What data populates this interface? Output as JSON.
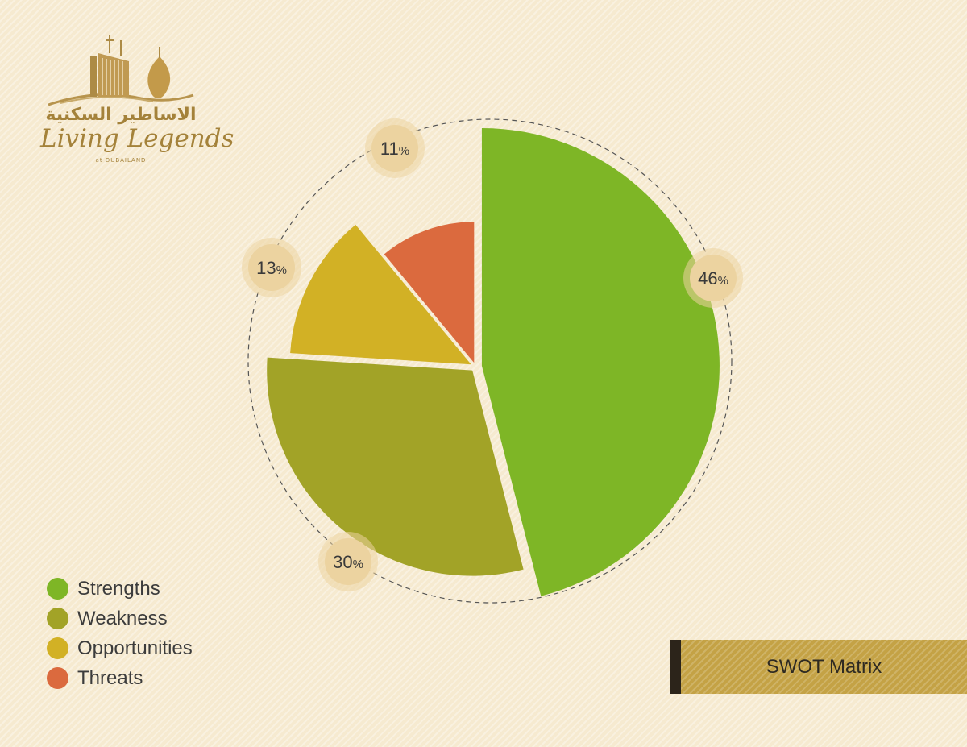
{
  "brand": {
    "arabic_name": "الاساطير السكنية",
    "name": "Living Legends",
    "tagline": "at DUBAILAND"
  },
  "badge": {
    "label": "SWOT Matrix"
  },
  "colors": {
    "strengths": "#7eb626",
    "weakness": "#a2a327",
    "opportunities": "#d2b125",
    "threats": "#db6a3e",
    "badge_fill": "#ecd3a0",
    "logo_gold": "#a4823a"
  },
  "chart_data": {
    "type": "pie",
    "title": "",
    "slices": [
      {
        "name": "Strengths",
        "value": 46,
        "label": "46",
        "color": "#7eb626"
      },
      {
        "name": "Weakness",
        "value": 30,
        "label": "30",
        "color": "#a2a327"
      },
      {
        "name": "Opportunities",
        "value": 13,
        "label": "13",
        "color": "#d2b125"
      },
      {
        "name": "Threats",
        "value": 11,
        "label": "11",
        "color": "#db6a3e"
      }
    ],
    "unit": "%",
    "exploded": true,
    "legend": "bottom-left"
  }
}
